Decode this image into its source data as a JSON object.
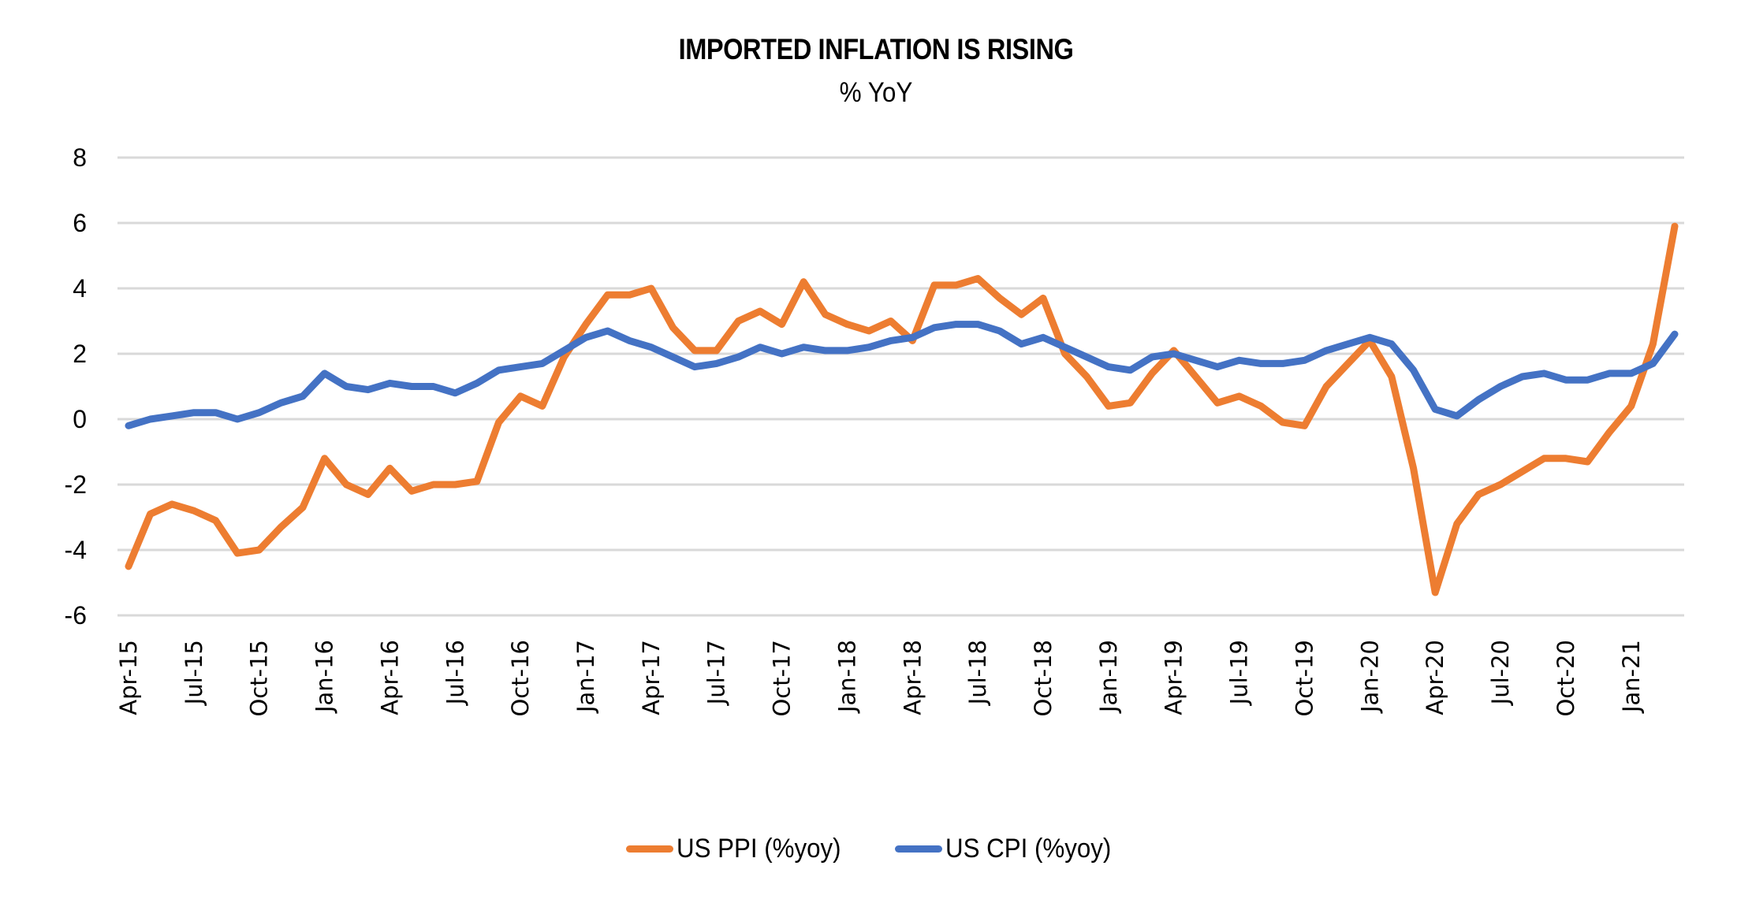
{
  "chart_data": {
    "type": "line",
    "title": "IMPORTED INFLATION IS RISING",
    "subtitle": "% YoY",
    "xlabel": "",
    "ylabel": "",
    "ylim": [
      -6,
      8
    ],
    "yticks": [
      8,
      6,
      4,
      2,
      0,
      -2,
      -4,
      -6
    ],
    "grid": true,
    "legend_position": "bottom",
    "x": [
      "Apr-15",
      "May-15",
      "Jun-15",
      "Jul-15",
      "Aug-15",
      "Sep-15",
      "Oct-15",
      "Nov-15",
      "Dec-15",
      "Jan-16",
      "Feb-16",
      "Mar-16",
      "Apr-16",
      "May-16",
      "Jun-16",
      "Jul-16",
      "Aug-16",
      "Sep-16",
      "Oct-16",
      "Nov-16",
      "Dec-16",
      "Jan-17",
      "Feb-17",
      "Mar-17",
      "Apr-17",
      "May-17",
      "Jun-17",
      "Jul-17",
      "Aug-17",
      "Sep-17",
      "Oct-17",
      "Nov-17",
      "Dec-17",
      "Jan-18",
      "Feb-18",
      "Mar-18",
      "Apr-18",
      "May-18",
      "Jun-18",
      "Jul-18",
      "Aug-18",
      "Sep-18",
      "Oct-18",
      "Nov-18",
      "Dec-18",
      "Jan-19",
      "Feb-19",
      "Mar-19",
      "Apr-19",
      "May-19",
      "Jun-19",
      "Jul-19",
      "Aug-19",
      "Sep-19",
      "Oct-19",
      "Nov-19",
      "Dec-19",
      "Jan-20",
      "Feb-20",
      "Mar-20",
      "Apr-20",
      "May-20",
      "Jun-20",
      "Jul-20",
      "Aug-20",
      "Sep-20",
      "Oct-20",
      "Nov-20",
      "Dec-20",
      "Jan-21",
      "Feb-21",
      "Mar-21"
    ],
    "xtick_labels": [
      "Apr-15",
      "Jul-15",
      "Oct-15",
      "Jan-16",
      "Apr-16",
      "Jul-16",
      "Oct-16",
      "Jan-17",
      "Apr-17",
      "Jul-17",
      "Oct-17",
      "Jan-18",
      "Apr-18",
      "Jul-18",
      "Oct-18",
      "Jan-19",
      "Apr-19",
      "Jul-19",
      "Oct-19",
      "Jan-20",
      "Apr-20",
      "Jul-20",
      "Oct-20",
      "Jan-21"
    ],
    "series": [
      {
        "name": "US PPI (%yoy)",
        "color": "#ED7D31",
        "values": [
          -4.5,
          -2.9,
          -2.6,
          -2.8,
          -3.1,
          -4.1,
          -4.0,
          -3.3,
          -2.7,
          -1.2,
          -2.0,
          -2.3,
          -1.5,
          -2.2,
          -2.0,
          -2.0,
          -1.9,
          -0.1,
          0.7,
          0.4,
          1.9,
          2.9,
          3.8,
          3.8,
          4.0,
          2.8,
          2.1,
          2.1,
          3.0,
          3.3,
          2.9,
          4.2,
          3.2,
          2.9,
          2.7,
          3.0,
          2.4,
          4.1,
          4.1,
          4.3,
          3.7,
          3.2,
          3.7,
          2.0,
          1.3,
          0.4,
          0.5,
          1.4,
          2.1,
          1.3,
          0.5,
          0.7,
          0.4,
          -0.1,
          -0.2,
          1.0,
          1.7,
          2.4,
          1.3,
          -1.5,
          -5.3,
          -3.2,
          -2.3,
          -2.0,
          -1.6,
          -1.2,
          -1.2,
          -1.3,
          -0.4,
          0.4,
          2.3,
          5.9
        ]
      },
      {
        "name": "US CPI (%yoy)",
        "color": "#4472C4",
        "values": [
          -0.2,
          0.0,
          0.1,
          0.2,
          0.2,
          0.0,
          0.2,
          0.5,
          0.7,
          1.4,
          1.0,
          0.9,
          1.1,
          1.0,
          1.0,
          0.8,
          1.1,
          1.5,
          1.6,
          1.7,
          2.1,
          2.5,
          2.7,
          2.4,
          2.2,
          1.9,
          1.6,
          1.7,
          1.9,
          2.2,
          2.0,
          2.2,
          2.1,
          2.1,
          2.2,
          2.4,
          2.5,
          2.8,
          2.9,
          2.9,
          2.7,
          2.3,
          2.5,
          2.2,
          1.9,
          1.6,
          1.5,
          1.9,
          2.0,
          1.8,
          1.6,
          1.8,
          1.7,
          1.7,
          1.8,
          2.1,
          2.3,
          2.5,
          2.3,
          1.5,
          0.3,
          0.1,
          0.6,
          1.0,
          1.3,
          1.4,
          1.2,
          1.2,
          1.4,
          1.4,
          1.7,
          2.6
        ]
      }
    ]
  }
}
